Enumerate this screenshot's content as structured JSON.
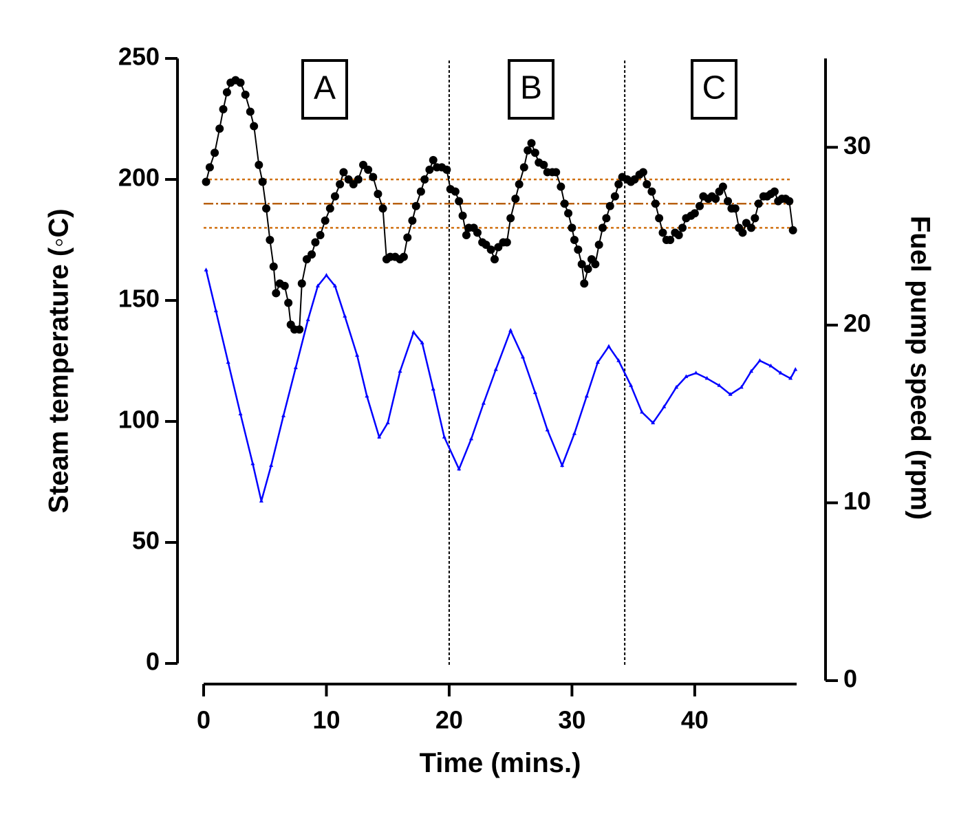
{
  "chart_data": {
    "type": "line",
    "xlabel": "Time (mins.)",
    "ylabel": "Steam temperature (◦C)",
    "y2label": "Fuel pump speed (rpm)",
    "xlim": [
      0,
      48.3
    ],
    "xticks": [
      0,
      10,
      20,
      30,
      40
    ],
    "ylim": [
      0,
      250
    ],
    "yticks": [
      0,
      50,
      100,
      150,
      200,
      250
    ],
    "y2lim": [
      0,
      35
    ],
    "y2ticks": [
      0,
      10,
      20,
      30
    ],
    "reference_lines": [
      {
        "value": 200,
        "style": "dotted",
        "color": "#d07010"
      },
      {
        "value": 190,
        "style": "dashdot",
        "color": "#b86010"
      },
      {
        "value": 180,
        "style": "dotted",
        "color": "#d07010"
      }
    ],
    "region_boundaries": [
      20,
      34.3
    ],
    "annotations": [
      {
        "text": "A"
      },
      {
        "text": "B"
      },
      {
        "text": "C"
      }
    ],
    "series": [
      {
        "color": "#000000",
        "marker": "circle",
        "axis": "y",
        "x": [
          0.2,
          0.5,
          0.9,
          1.3,
          1.6,
          1.9,
          2.2,
          2.6,
          3.0,
          3.4,
          3.8,
          4.1,
          4.5,
          4.8,
          5.1,
          5.4,
          5.7,
          5.9,
          6.2,
          6.6,
          6.9,
          7.1,
          7.4,
          7.8,
          8.0,
          8.4,
          8.8,
          9.1,
          9.5,
          9.9,
          10.3,
          10.7,
          11.1,
          11.4,
          11.8,
          12.2,
          12.6,
          13.0,
          13.4,
          13.8,
          14.2,
          14.6,
          14.9,
          15.2,
          15.6,
          16.0,
          16.3,
          16.6,
          17.0,
          17.3,
          17.7,
          18.0,
          18.4,
          18.7,
          19.0,
          19.4,
          19.8,
          20.1,
          20.5,
          20.8,
          21.1,
          21.4,
          21.6,
          22.0,
          22.3,
          22.7,
          23.0,
          23.4,
          23.7,
          24.0,
          24.4,
          24.7,
          25.0,
          25.4,
          25.7,
          26.1,
          26.4,
          26.7,
          27.0,
          27.3,
          27.7,
          28.0,
          28.4,
          28.7,
          29.1,
          29.4,
          29.7,
          30.0,
          30.2,
          30.5,
          30.8,
          31.0,
          31.3,
          31.6,
          31.9,
          32.2,
          32.5,
          32.8,
          33.1,
          33.5,
          33.8,
          34.1,
          34.5,
          34.8,
          35.1,
          35.5,
          35.8,
          36.1,
          36.5,
          36.8,
          37.1,
          37.4,
          37.7,
          38.0,
          38.4,
          38.7,
          39.0,
          39.3,
          39.7,
          40.0,
          40.4,
          40.7,
          41.1,
          41.4,
          41.7,
          42.0,
          42.3,
          42.7,
          43.0,
          43.3,
          43.6,
          43.9,
          44.2,
          44.6,
          44.9,
          45.2,
          45.6,
          45.9,
          46.2,
          46.5,
          46.8,
          47.1,
          47.4,
          47.7,
          48.0
        ],
        "values": [
          199,
          205,
          211,
          221,
          229,
          236,
          240,
          241,
          240,
          235,
          228,
          222,
          206,
          199,
          188,
          175,
          164,
          153,
          157,
          156,
          149,
          140,
          138,
          138,
          157,
          167,
          169,
          174,
          177,
          183,
          188,
          193,
          198,
          203,
          200,
          198,
          200,
          206,
          204,
          201,
          194,
          188,
          167,
          168,
          168,
          167,
          168,
          176,
          183,
          189,
          195,
          200,
          204,
          208,
          205,
          205,
          204,
          196,
          195,
          191,
          185,
          177,
          180,
          180,
          178,
          174,
          173,
          171,
          167,
          172,
          174,
          174,
          184,
          192,
          198,
          205,
          212,
          215,
          211,
          207,
          206,
          203,
          203,
          203,
          197,
          190,
          186,
          180,
          175,
          171,
          165,
          157,
          163,
          167,
          165,
          173,
          180,
          184,
          189,
          193,
          198,
          201,
          200,
          199,
          200,
          202,
          203,
          198,
          195,
          190,
          184,
          178,
          175,
          175,
          178,
          177,
          180,
          184,
          185,
          186,
          189,
          193,
          192,
          193,
          192,
          195,
          197,
          191,
          188,
          188,
          180,
          178,
          182,
          180,
          184,
          190,
          193,
          193,
          194,
          195,
          191,
          192,
          192,
          191,
          179
        ]
      },
      {
        "color": "#0000ff",
        "marker": "triangle",
        "axis": "y2",
        "x": [
          0.2,
          1,
          2,
          3,
          4,
          4.7,
          5.5,
          6.5,
          7.5,
          8.5,
          9.3,
          10.0,
          10.7,
          11.5,
          12.5,
          13.3,
          14.3,
          15.0,
          16.0,
          17.1,
          17.8,
          18.7,
          19.6,
          20.8,
          21.8,
          22.8,
          23.8,
          25.0,
          26.0,
          27.0,
          28.0,
          29.2,
          30.2,
          31.2,
          32.1,
          33.0,
          33.8,
          34.8,
          35.7,
          36.6,
          37.5,
          38.5,
          39.3,
          40.1,
          41.0,
          42.0,
          42.9,
          43.8,
          44.6,
          45.3,
          46.2,
          47.0,
          47.8,
          48.2
        ],
        "values": [
          23.1,
          20.8,
          17.9,
          15.0,
          12.2,
          10.1,
          12.1,
          14.9,
          17.6,
          20.3,
          22.2,
          22.8,
          22.2,
          20.5,
          18.3,
          16.0,
          13.7,
          14.5,
          17.4,
          19.6,
          19.0,
          16.4,
          13.7,
          11.9,
          13.6,
          15.6,
          17.5,
          19.7,
          18.2,
          16.2,
          14.1,
          12.1,
          13.9,
          16.0,
          17.9,
          18.8,
          18.0,
          16.6,
          15.1,
          14.5,
          15.4,
          16.5,
          17.1,
          17.3,
          17.0,
          16.6,
          16.1,
          16.5,
          17.4,
          18.0,
          17.7,
          17.3,
          17.0,
          17.5
        ]
      }
    ]
  }
}
